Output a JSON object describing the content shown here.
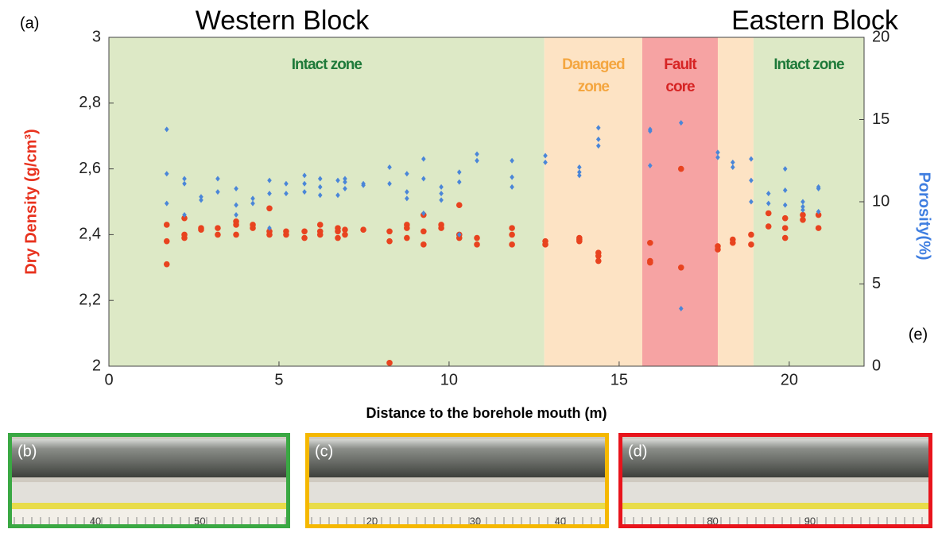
{
  "chart_data": {
    "type": "scatter",
    "annotations": {
      "panel": "(a)",
      "west": "Western Block",
      "east": "Eastern Block",
      "side": "(e)"
    },
    "xlabel": "Distance to the borehole mouth (m)",
    "ylabel": "Dry Density (g/cm³)",
    "y2label": "Porosity(%)",
    "xlim": [
      0,
      22.2
    ],
    "xticks": [
      0,
      5,
      10,
      15,
      20
    ],
    "ylim": [
      2,
      3
    ],
    "yticks": [
      2,
      {
        "value": 2.2,
        "label": "2,2"
      },
      {
        "value": 2.4,
        "label": "2,4"
      },
      {
        "value": 2.6,
        "label": "2,6"
      },
      {
        "value": 2.8,
        "label": "2,8"
      },
      3
    ],
    "y2lim": [
      0,
      20
    ],
    "y2ticks": [
      0,
      5,
      10,
      15,
      20
    ],
    "zones": [
      {
        "label": "Intact zone",
        "from": 0,
        "to": 12.8,
        "color": "#dde9c6",
        "label_color": "#1f7a3a"
      },
      {
        "label": "Damaged zone",
        "from": 12.8,
        "to": 15.68,
        "color": "#fde3c4",
        "label_color": "#f4a640"
      },
      {
        "label": "Fault core",
        "from": 15.68,
        "to": 17.9,
        "color": "#f6a3a3",
        "label_color": "#d62424"
      },
      {
        "from": 17.9,
        "to": 18.95,
        "color": "#fde3c4"
      },
      {
        "label": "Intact zone",
        "from": 18.95,
        "to": 22.2,
        "color": "#dde9c6",
        "label_color": "#1f7a3a"
      }
    ],
    "series": [
      {
        "name": "Dry Density",
        "color": "#e8431f",
        "marker": "circle",
        "x": [
          1.7,
          1.7,
          1.7,
          2.22,
          2.22,
          2.22,
          2.71,
          2.71,
          3.2,
          3.2,
          3.74,
          3.74,
          3.74,
          4.23,
          4.23,
          4.72,
          4.72,
          4.72,
          5.21,
          5.21,
          5.75,
          5.75,
          6.21,
          6.21,
          6.21,
          6.73,
          6.73,
          6.73,
          6.94,
          6.94,
          7.48,
          8.25,
          8.25,
          8.25,
          8.76,
          8.76,
          8.76,
          9.25,
          9.25,
          9.25,
          9.77,
          9.77,
          10.3,
          10.3,
          10.3,
          10.82,
          10.82,
          11.85,
          11.85,
          11.85,
          12.83,
          12.83,
          13.83,
          13.83,
          13.83,
          14.39,
          14.39,
          14.39,
          15.91,
          15.91,
          15.91,
          16.82,
          16.82,
          17.9,
          17.9,
          18.34,
          18.34,
          18.88,
          18.88,
          19.39,
          19.39,
          19.88,
          19.88,
          19.88,
          20.4,
          20.4,
          20.86,
          20.86
        ],
        "values": [
          2.43,
          2.38,
          2.31,
          2.45,
          2.4,
          2.39,
          2.42,
          2.415,
          2.42,
          2.4,
          2.44,
          2.43,
          2.4,
          2.43,
          2.42,
          2.48,
          2.41,
          2.4,
          2.41,
          2.4,
          2.41,
          2.39,
          2.43,
          2.41,
          2.4,
          2.42,
          2.41,
          2.39,
          2.415,
          2.4,
          2.415,
          2.41,
          2.38,
          2.01,
          2.43,
          2.42,
          2.39,
          2.46,
          2.41,
          2.37,
          2.43,
          2.42,
          2.49,
          2.4,
          2.39,
          2.39,
          2.37,
          2.42,
          2.4,
          2.37,
          2.38,
          2.37,
          2.39,
          2.385,
          2.38,
          2.345,
          2.335,
          2.32,
          2.375,
          2.32,
          2.315,
          2.6,
          2.3,
          2.365,
          2.355,
          2.385,
          2.375,
          2.4,
          2.37,
          2.465,
          2.425,
          2.45,
          2.42,
          2.39,
          2.46,
          2.445,
          2.46,
          2.42
        ]
      },
      {
        "name": "Porosity",
        "color": "#4a86d8",
        "marker": "diamond",
        "axis": "y2",
        "x": [
          1.7,
          1.7,
          1.7,
          2.22,
          2.22,
          2.22,
          2.71,
          2.71,
          3.2,
          3.2,
          3.74,
          3.74,
          3.74,
          4.23,
          4.23,
          4.72,
          4.72,
          4.72,
          5.21,
          5.21,
          5.75,
          5.75,
          5.75,
          6.21,
          6.21,
          6.21,
          6.73,
          6.73,
          6.94,
          6.94,
          6.94,
          7.48,
          7.48,
          8.25,
          8.25,
          8.76,
          8.76,
          8.76,
          9.25,
          9.25,
          9.25,
          9.77,
          9.77,
          9.77,
          10.3,
          10.3,
          10.3,
          10.82,
          10.82,
          11.85,
          11.85,
          11.85,
          12.83,
          12.83,
          13.83,
          13.83,
          13.83,
          14.39,
          14.39,
          14.39,
          15.91,
          15.91,
          15.91,
          16.82,
          16.82,
          17.9,
          17.9,
          18.34,
          18.34,
          18.88,
          18.88,
          18.88,
          19.39,
          19.39,
          19.88,
          19.88,
          19.88,
          20.4,
          20.4,
          20.4,
          20.86,
          20.86,
          20.86
        ],
        "values": [
          14.4,
          11.7,
          9.9,
          11.4,
          11.1,
          9.2,
          10.3,
          10.1,
          11.4,
          10.6,
          10.8,
          9.8,
          9.2,
          10.2,
          9.9,
          11.3,
          10.5,
          8.4,
          11.1,
          10.5,
          11.6,
          11.1,
          10.6,
          11.4,
          10.9,
          10.4,
          11.3,
          10.4,
          11.4,
          11.2,
          10.8,
          11.1,
          11.0,
          12.1,
          11.1,
          11.7,
          10.6,
          10.2,
          12.6,
          11.4,
          9.3,
          10.9,
          10.5,
          10.1,
          11.8,
          11.2,
          8.0,
          12.9,
          12.5,
          12.5,
          11.5,
          10.9,
          12.8,
          12.4,
          12.1,
          11.8,
          11.6,
          14.5,
          13.8,
          13.4,
          14.4,
          14.3,
          12.2,
          14.8,
          3.5,
          13.0,
          12.7,
          12.4,
          12.1,
          12.6,
          11.3,
          10.0,
          10.5,
          9.9,
          12.0,
          10.7,
          9.8,
          10.0,
          9.7,
          9.5,
          10.9,
          10.8,
          9.4
        ]
      }
    ]
  },
  "photos": [
    {
      "label": "(b)",
      "color": "#3aa843",
      "ruler": [
        "40",
        "50"
      ]
    },
    {
      "label": "(c)",
      "color": "#f5b800",
      "ruler": [
        "20",
        "30",
        "40"
      ]
    },
    {
      "label": "(d)",
      "color": "#e8141c",
      "ruler": [
        "80",
        "90"
      ]
    }
  ]
}
